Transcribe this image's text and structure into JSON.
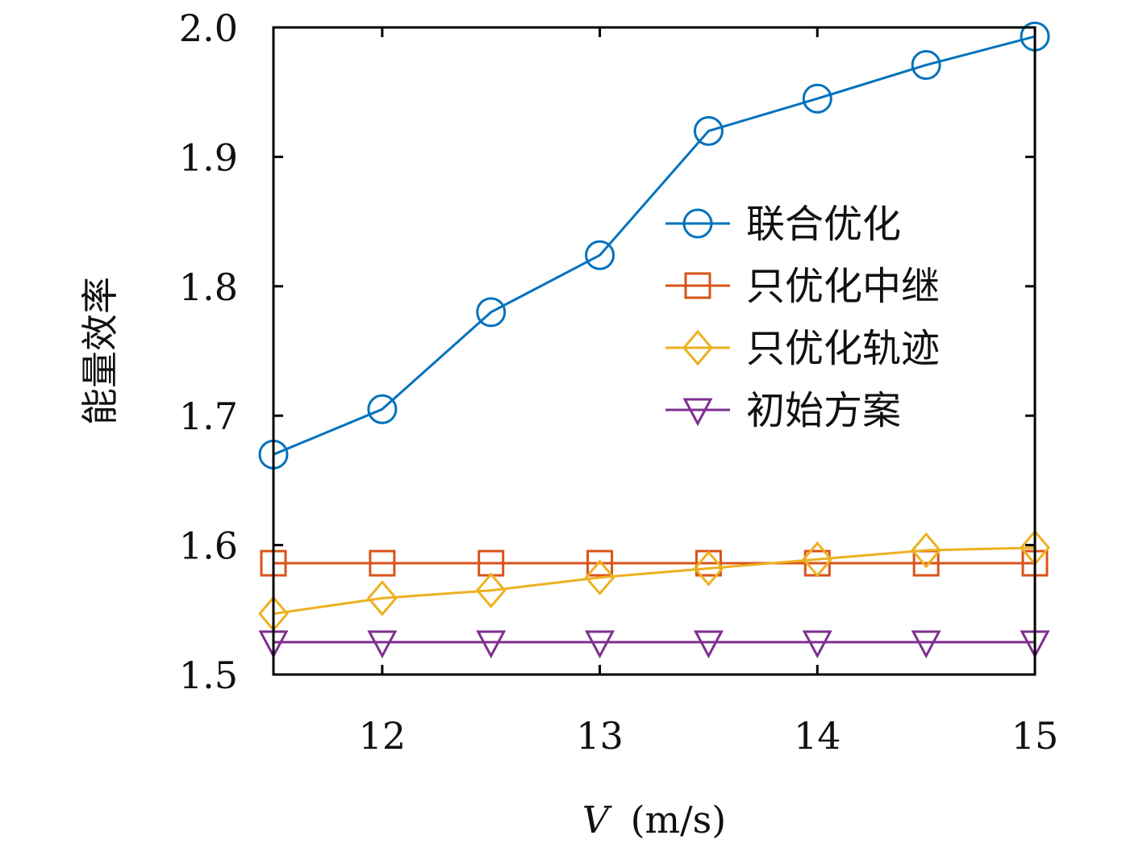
{
  "chart_data": {
    "type": "line",
    "title": "",
    "xlabel": "V (m/s)",
    "xlabel_var": "V",
    "xlabel_unit": "(m/s)",
    "ylabel": "能量效率",
    "xlim": [
      11.5,
      15
    ],
    "ylim": [
      1.5,
      2.0
    ],
    "xticks": [
      12,
      13,
      14,
      15
    ],
    "yticks": [
      1.5,
      1.6,
      1.7,
      1.8,
      1.9,
      2.0
    ],
    "ytick_labels": [
      "1.5",
      "1.6",
      "1.7",
      "1.8",
      "1.9",
      "2.0"
    ],
    "grid": false,
    "legend_position": "right",
    "x": [
      11.5,
      12,
      12.5,
      13,
      13.5,
      14,
      14.5,
      15
    ],
    "series": [
      {
        "name": "联合优化",
        "marker": "circle",
        "color": "#0072BD",
        "values": [
          1.67,
          1.705,
          1.78,
          1.824,
          1.92,
          1.945,
          1.971,
          1.993
        ]
      },
      {
        "name": "只优化中继",
        "marker": "square",
        "color": "#D95319",
        "values": [
          1.586,
          1.586,
          1.586,
          1.586,
          1.586,
          1.586,
          1.586,
          1.586
        ]
      },
      {
        "name": "只优化轨迹",
        "marker": "diamond",
        "color": "#EDB120",
        "values": [
          1.547,
          1.559,
          1.565,
          1.575,
          1.582,
          1.589,
          1.596,
          1.598
        ]
      },
      {
        "name": "初始方案",
        "marker": "triangle-down",
        "color": "#7E2F8E",
        "values": [
          1.525,
          1.525,
          1.525,
          1.525,
          1.525,
          1.525,
          1.525,
          1.525
        ]
      }
    ]
  }
}
